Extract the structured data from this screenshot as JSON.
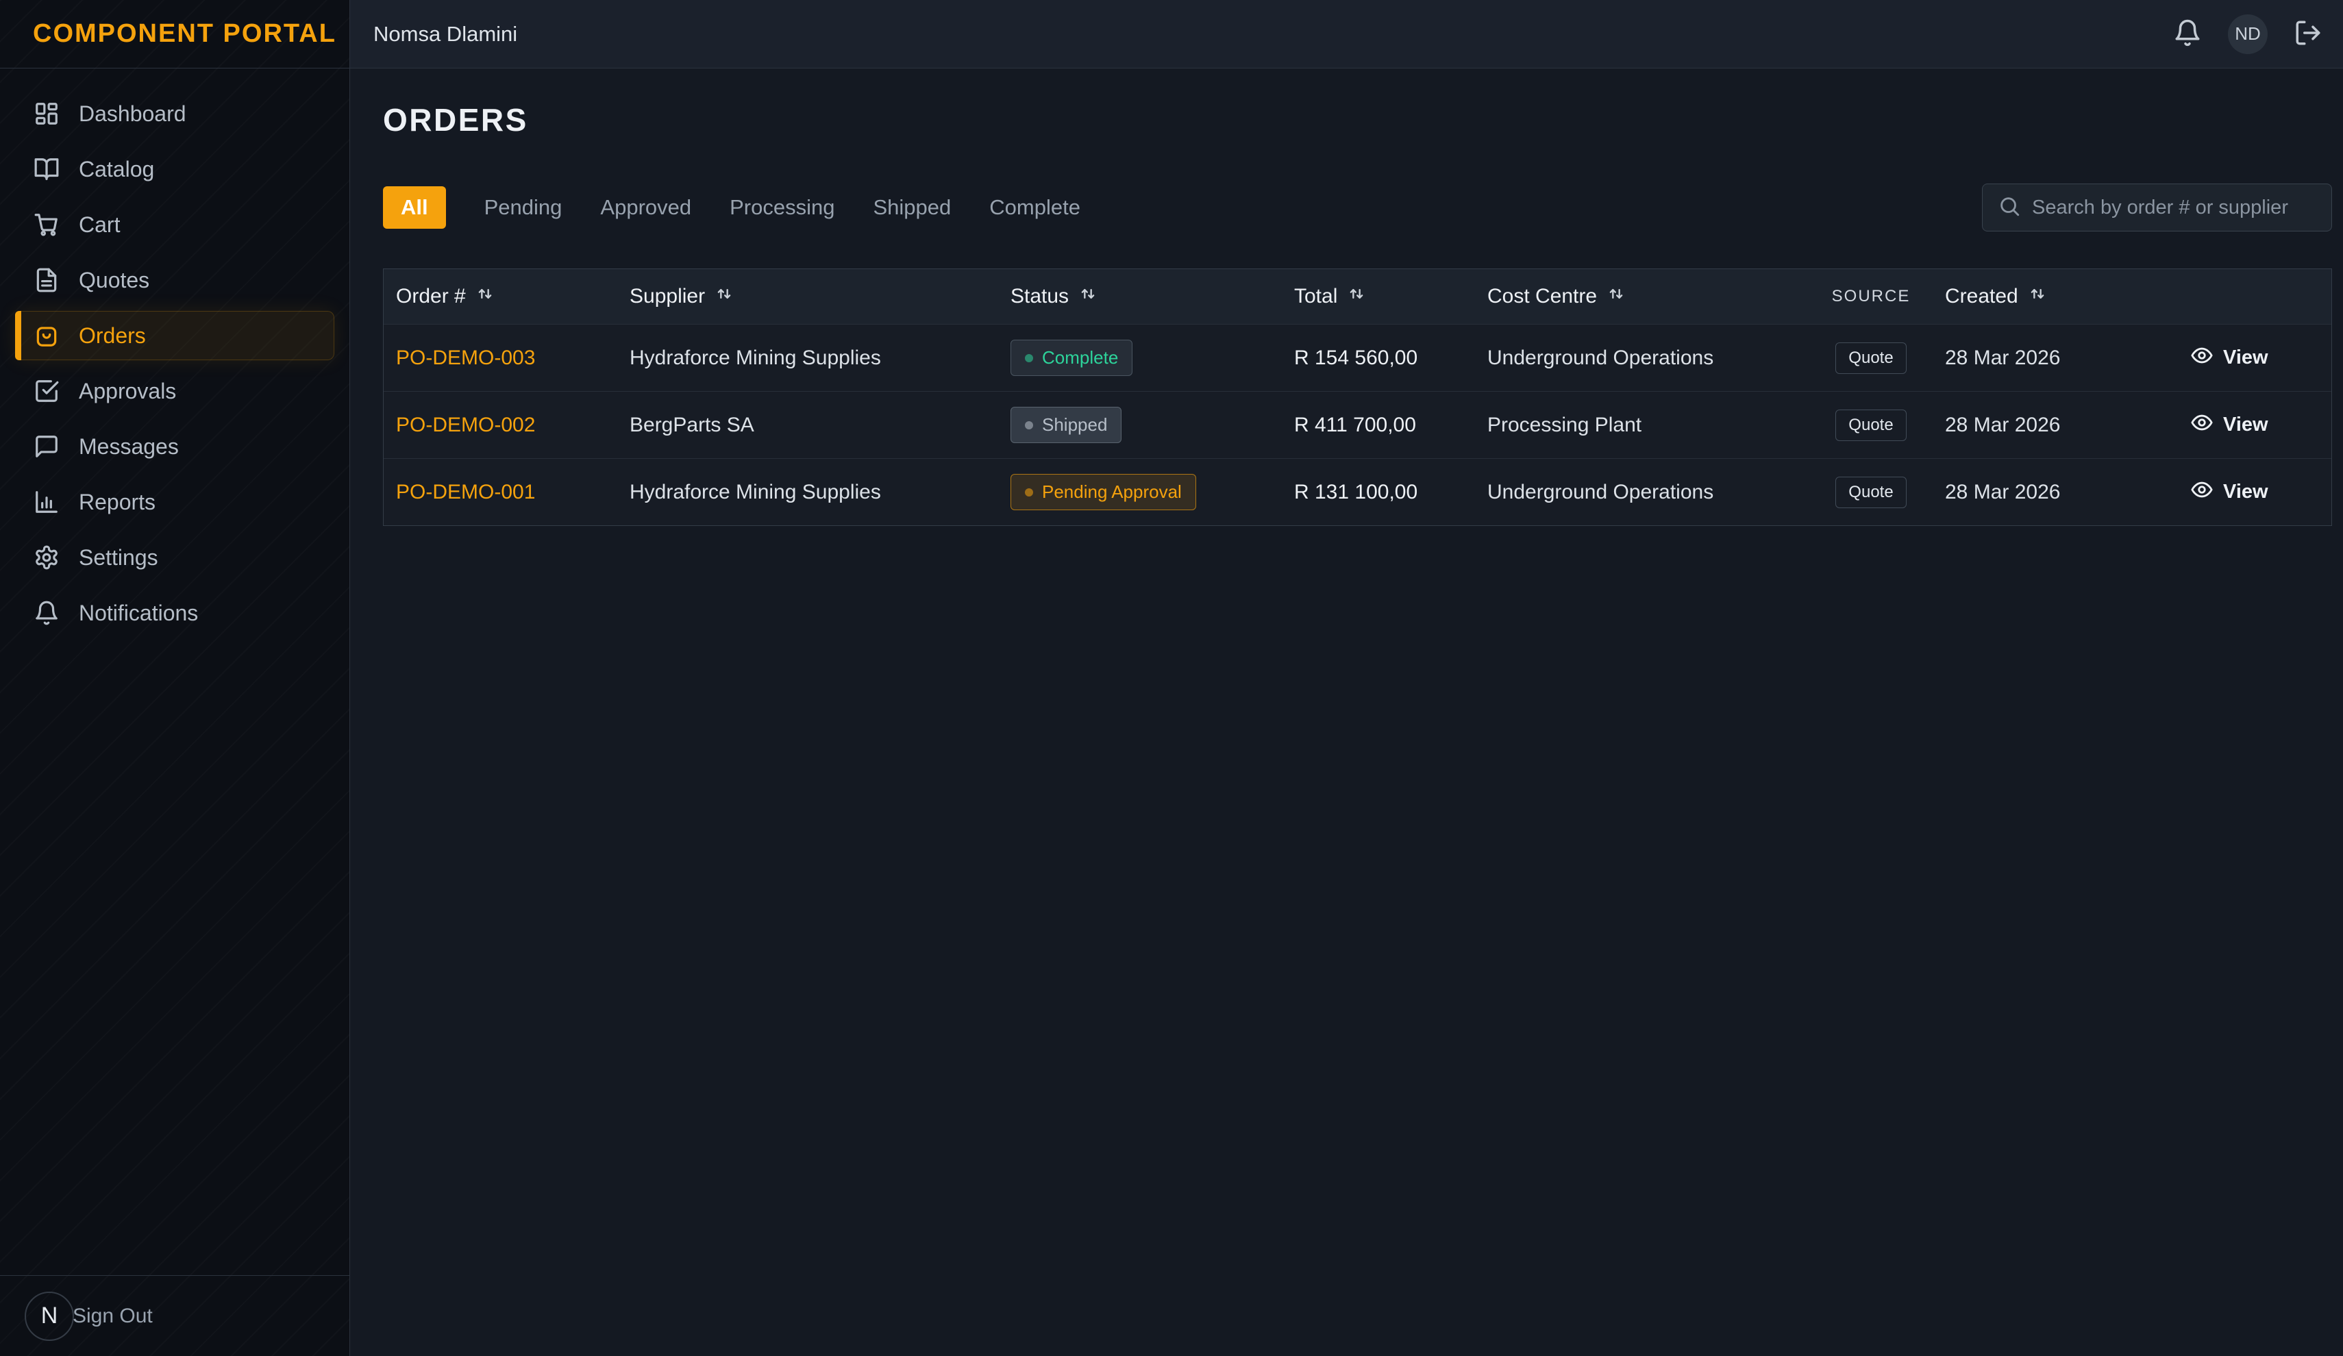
{
  "brand": {
    "name": "COMPONENT PORTAL"
  },
  "topbar": {
    "user_name": "Nomsa Dlamini",
    "avatar_initials": "ND",
    "icons": [
      "bell-icon",
      "logout-icon"
    ]
  },
  "sidebar": {
    "items": [
      {
        "label": "Dashboard",
        "icon": "dashboard-grid-icon",
        "active": false
      },
      {
        "label": "Catalog",
        "icon": "catalog-book-icon",
        "active": false
      },
      {
        "label": "Cart",
        "icon": "cart-icon",
        "active": false
      },
      {
        "label": "Quotes",
        "icon": "quotes-file-icon",
        "active": false
      },
      {
        "label": "Orders",
        "icon": "orders-bag-icon",
        "active": true
      },
      {
        "label": "Approvals",
        "icon": "approvals-check-icon",
        "active": false
      },
      {
        "label": "Messages",
        "icon": "messages-chat-icon",
        "active": false
      },
      {
        "label": "Reports",
        "icon": "reports-chart-icon",
        "active": false
      },
      {
        "label": "Settings",
        "icon": "settings-gear-icon",
        "active": false
      },
      {
        "label": "Notifications",
        "icon": "notifications-bell-icon",
        "active": false
      }
    ],
    "footer": {
      "avatar_initial": "N",
      "sign_out_label": "Sign Out"
    }
  },
  "page": {
    "title": "ORDERS",
    "filters": [
      "All",
      "Pending",
      "Approved",
      "Processing",
      "Shipped",
      "Complete"
    ],
    "active_filter": "All",
    "search_placeholder": "Search by order # or supplier"
  },
  "table": {
    "columns": [
      {
        "key": "order",
        "label": "Order #",
        "sortable": true
      },
      {
        "key": "supplier",
        "label": "Supplier",
        "sortable": true
      },
      {
        "key": "status",
        "label": "Status",
        "sortable": true
      },
      {
        "key": "total",
        "label": "Total",
        "sortable": true
      },
      {
        "key": "cost-centre",
        "label": "Cost Centre",
        "sortable": true
      },
      {
        "key": "source",
        "label": "SOURCE",
        "sortable": false
      },
      {
        "key": "created",
        "label": "Created",
        "sortable": true
      },
      {
        "key": "actions",
        "label": "",
        "sortable": false
      }
    ],
    "rows": [
      {
        "order_no": "PO-DEMO-003",
        "supplier": "Hydraforce Mining Supplies",
        "status": "Complete",
        "status_kind": "complete",
        "total": "R 154 560,00",
        "cost_centre": "Underground Operations",
        "source": "Quote",
        "created": "28 Mar 2026",
        "action": "View"
      },
      {
        "order_no": "PO-DEMO-002",
        "supplier": "BergParts SA",
        "status": "Shipped",
        "status_kind": "shipped",
        "total": "R 411 700,00",
        "cost_centre": "Processing Plant",
        "source": "Quote",
        "created": "28 Mar 2026",
        "action": "View"
      },
      {
        "order_no": "PO-DEMO-001",
        "supplier": "Hydraforce Mining Supplies",
        "status": "Pending Approval",
        "status_kind": "pending",
        "total": "R 131 100,00",
        "cost_centre": "Underground Operations",
        "source": "Quote",
        "created": "28 Mar 2026",
        "action": "View"
      }
    ]
  },
  "colors": {
    "accent": "#f5a20d",
    "status_complete": "#2dd49b",
    "status_shipped": "#b7bfc9",
    "status_pending": "#f5a20d",
    "page_bg": "#141922",
    "sidebar_bg": "#0c0f15",
    "topbar_bg": "#1b212c"
  }
}
